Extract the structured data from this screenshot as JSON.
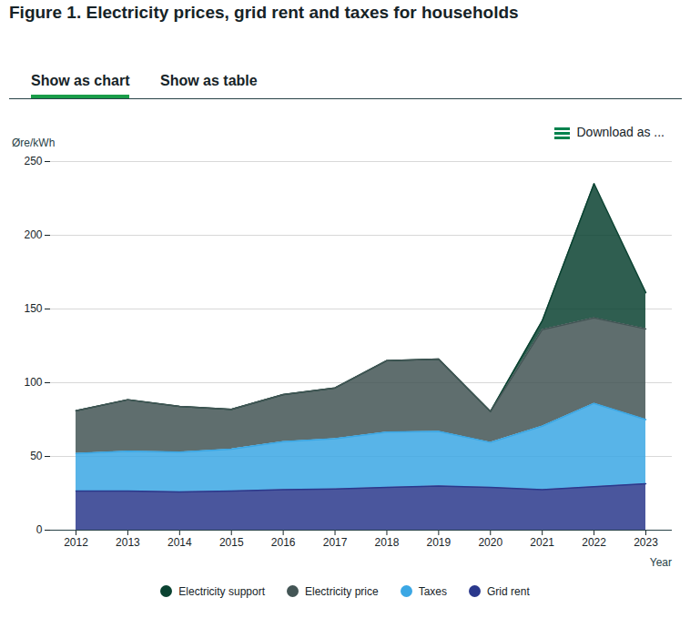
{
  "page": {
    "tabs": [
      "Show as chart",
      "Show as table"
    ],
    "download_label": "Download as ..."
  },
  "chart_data": {
    "type": "area",
    "stacked": true,
    "title": "Figure 1. Electricity prices, grid rent and taxes for households",
    "y_label": "Øre/kWh",
    "x_label": "Year",
    "x": [
      2012,
      2013,
      2014,
      2015,
      2016,
      2017,
      2018,
      2019,
      2020,
      2021,
      2022,
      2023
    ],
    "series": [
      {
        "name": "Electricity support",
        "color": "#0a4231",
        "values": [
          0,
          0,
          0,
          0,
          0,
          0,
          0,
          0,
          0,
          6,
          91,
          24.5
        ]
      },
      {
        "name": "Electricity price",
        "color": "#435555",
        "values": [
          29,
          35,
          31,
          27,
          32,
          34.5,
          48.5,
          49,
          21,
          65.5,
          58,
          61.5
        ]
      },
      {
        "name": "Taxes",
        "color": "#3ba7e4",
        "values": [
          25.5,
          27,
          27,
          28.5,
          32.5,
          34,
          37.5,
          37,
          30.5,
          43,
          56.5,
          43.5
        ]
      },
      {
        "name": "Grid rent",
        "color": "#2a388c",
        "values": [
          26.5,
          26.5,
          26,
          26.5,
          27.5,
          28,
          29,
          30,
          29,
          27.5,
          29.5,
          31.5
        ]
      }
    ],
    "xlim": [
      2012,
      2023
    ],
    "xticks": [
      2012,
      2013,
      2014,
      2015,
      2016,
      2017,
      2018,
      2019,
      2020,
      2021,
      2022,
      2023
    ],
    "ylim": [
      0,
      250
    ],
    "yticks": [
      0,
      50,
      100,
      150,
      200,
      250
    ],
    "grid": true,
    "legend": "bottom"
  }
}
